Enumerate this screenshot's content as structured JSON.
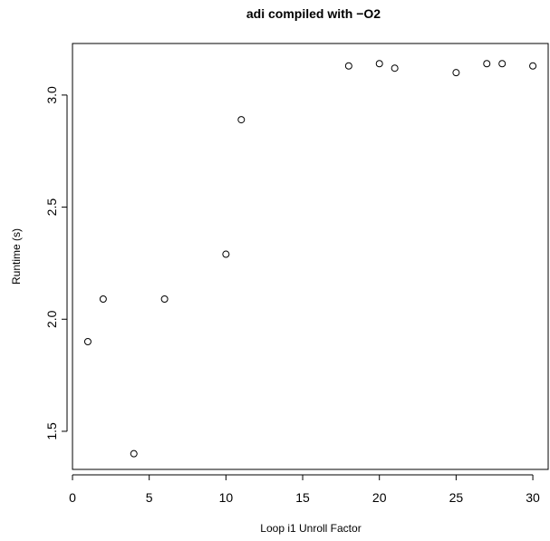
{
  "chart_data": {
    "type": "scatter",
    "title": "adi compiled with −O2",
    "xlabel": "Loop i1 Unroll Factor",
    "ylabel": "Runtime (s)",
    "xlim": [
      0,
      31
    ],
    "ylim": [
      1.33,
      3.23
    ],
    "x_ticks": [
      0,
      5,
      10,
      15,
      20,
      25,
      30
    ],
    "y_ticks": [
      1.5,
      2.0,
      2.5,
      3.0
    ],
    "x_tick_labels": [
      "0",
      "5",
      "10",
      "15",
      "20",
      "25",
      "30"
    ],
    "y_tick_labels": [
      "1.5",
      "2.0",
      "2.5",
      "3.0"
    ],
    "grid": false,
    "marker": "open-circle",
    "points": [
      {
        "x": 1,
        "y": 1.9
      },
      {
        "x": 2,
        "y": 2.09
      },
      {
        "x": 4,
        "y": 1.4
      },
      {
        "x": 6,
        "y": 2.09
      },
      {
        "x": 10,
        "y": 2.29
      },
      {
        "x": 11,
        "y": 2.89
      },
      {
        "x": 18,
        "y": 3.13
      },
      {
        "x": 20,
        "y": 3.14
      },
      {
        "x": 21,
        "y": 3.12
      },
      {
        "x": 25,
        "y": 3.1
      },
      {
        "x": 27,
        "y": 3.14
      },
      {
        "x": 28,
        "y": 3.14
      },
      {
        "x": 30,
        "y": 3.13
      }
    ]
  }
}
